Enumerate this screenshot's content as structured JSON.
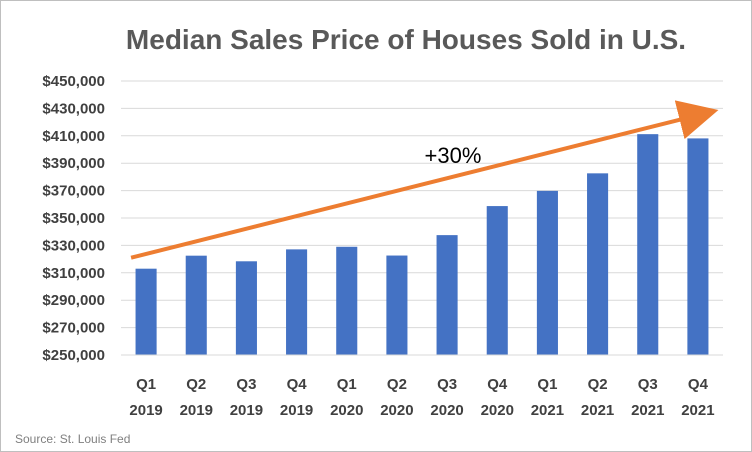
{
  "chart_data": {
    "type": "bar",
    "title": "Median Sales Price of Houses Sold in U.S.",
    "categories": [
      [
        "Q1",
        "2019"
      ],
      [
        "Q2",
        "2019"
      ],
      [
        "Q3",
        "2019"
      ],
      [
        "Q4",
        "2019"
      ],
      [
        "Q1",
        "2020"
      ],
      [
        "Q2",
        "2020"
      ],
      [
        "Q3",
        "2020"
      ],
      [
        "Q4",
        "2020"
      ],
      [
        "Q1",
        "2021"
      ],
      [
        "Q2",
        "2021"
      ],
      [
        "Q3",
        "2021"
      ],
      [
        "Q4",
        "2021"
      ]
    ],
    "values": [
      313000,
      322500,
      318400,
      327100,
      329000,
      322600,
      337500,
      358700,
      369800,
      382600,
      411200,
      408100
    ],
    "ylim": [
      250000,
      450000
    ],
    "yticks": [
      "$250,000",
      "$270,000",
      "$290,000",
      "$310,000",
      "$330,000",
      "$350,000",
      "$370,000",
      "$390,000",
      "$410,000",
      "$430,000",
      "$450,000"
    ],
    "ytick_values": [
      250000,
      270000,
      290000,
      310000,
      330000,
      350000,
      370000,
      390000,
      410000,
      430000,
      450000
    ],
    "grid": true,
    "bar_color": "#4472c4",
    "annotation": {
      "text": "+30%",
      "arrow_color": "#ed7d31",
      "from_category": 0,
      "to_category": 11,
      "from_value": 321000,
      "to_value": 426000
    },
    "source": "Source: St. Louis Fed"
  }
}
